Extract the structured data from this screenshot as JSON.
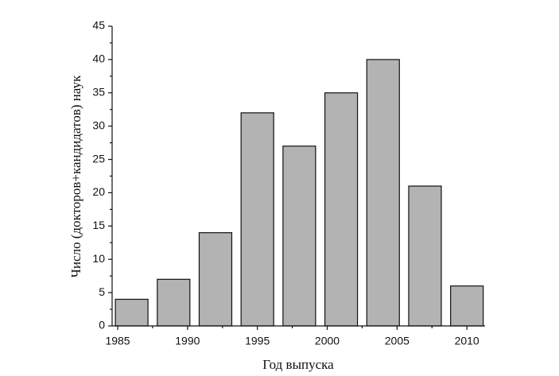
{
  "chart_data": {
    "type": "bar",
    "x_label": "Год выпуска",
    "y_label": "Число (докторов+кандидатов) наук",
    "x": [
      1986,
      1989,
      1992,
      1995,
      1998,
      2001,
      2004,
      2007,
      2010
    ],
    "values": [
      4,
      7,
      14,
      32,
      27,
      35,
      40,
      21,
      6
    ],
    "color": "#b3b3b3",
    "xlim": [
      1984.6,
      2011.3
    ],
    "xticks": [
      1985,
      1990,
      1995,
      2000,
      2005,
      2010
    ],
    "ylim": [
      0,
      45
    ],
    "yticks": [
      0,
      5,
      10,
      15,
      20,
      25,
      30,
      35,
      40,
      45
    ],
    "grid": false
  }
}
